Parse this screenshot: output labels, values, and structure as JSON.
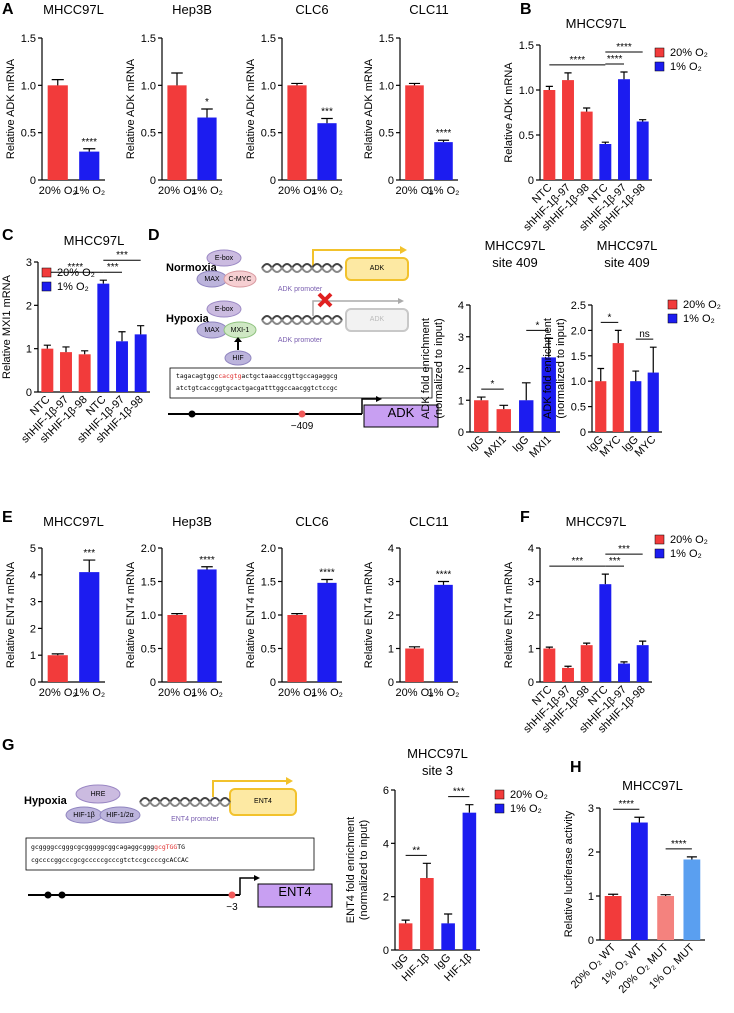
{
  "panel_labels": [
    "A",
    "B",
    "C",
    "D",
    "E",
    "F",
    "G",
    "H"
  ],
  "chart_data": [
    {
      "type": "bar",
      "title": "MHCC97L",
      "ylabel": "Relative ADK mRNA",
      "categories": [
        "20% O₂",
        "1% O₂"
      ],
      "values": [
        1.0,
        0.3
      ],
      "errors": [
        0.06,
        0.03
      ],
      "colors": [
        "#f23b3b",
        "#1c1cf0"
      ],
      "ylim": [
        0,
        1.5
      ],
      "yticks": [
        0,
        0.5,
        {
          "value": 1,
          "label": "1.0"
        },
        1.5
      ],
      "significance": [
        {
          "bar": 1,
          "label": "****"
        }
      ]
    },
    {
      "type": "bar",
      "title": "Hep3B",
      "ylabel": "Relative ADK mRNA",
      "categories": [
        "20% O₂",
        "1% O₂"
      ],
      "values": [
        1.0,
        0.66
      ],
      "errors": [
        0.13,
        0.09
      ],
      "colors": [
        "#f23b3b",
        "#1c1cf0"
      ],
      "ylim": [
        0,
        1.5
      ],
      "yticks": [
        0,
        0.5,
        {
          "value": 1,
          "label": "1.0"
        },
        1.5
      ],
      "significance": [
        {
          "bar": 1,
          "label": "*"
        }
      ]
    },
    {
      "type": "bar",
      "title": "CLC6",
      "ylabel": "Relative ADK mRNA",
      "categories": [
        "20% O₂",
        "1% O₂"
      ],
      "values": [
        1.0,
        0.6
      ],
      "errors": [
        0.02,
        0.05
      ],
      "colors": [
        "#f23b3b",
        "#1c1cf0"
      ],
      "ylim": [
        0,
        1.5
      ],
      "yticks": [
        0,
        0.5,
        {
          "value": 1,
          "label": "1.0"
        },
        1.5
      ],
      "significance": [
        {
          "bar": 1,
          "label": "***"
        }
      ]
    },
    {
      "type": "bar",
      "title": "CLC11",
      "ylabel": "Relative ADK mRNA",
      "categories": [
        "20% O₂",
        "1% O₂"
      ],
      "values": [
        1.0,
        0.4
      ],
      "errors": [
        0.02,
        0.02
      ],
      "colors": [
        "#f23b3b",
        "#1c1cf0"
      ],
      "ylim": [
        0,
        1.5
      ],
      "yticks": [
        0,
        0.5,
        {
          "value": 1,
          "label": "1.0"
        },
        1.5
      ],
      "significance": [
        {
          "bar": 1,
          "label": "****"
        }
      ]
    },
    {
      "type": "bar",
      "title": "MHCC97L",
      "ylabel": "Relative ADK mRNA",
      "categories": [
        "NTC",
        "shHIF-1β-97",
        "shHIF-1β-98",
        "NTC",
        "shHIF-1β-97",
        "shHIF-1β-98"
      ],
      "values": [
        1.0,
        1.11,
        0.76,
        0.4,
        1.12,
        0.65
      ],
      "errors": [
        0.04,
        0.08,
        0.04,
        0.02,
        0.08,
        0.02
      ],
      "colors": [
        "#f23b3b",
        "#f23b3b",
        "#f23b3b",
        "#1c1cf0",
        "#1c1cf0",
        "#1c1cf0"
      ],
      "ylim": [
        0,
        1.5
      ],
      "yticks": [
        0,
        0.5,
        {
          "value": 1,
          "label": "1.0"
        },
        1.5
      ],
      "legend": [
        {
          "name": "20% O₂",
          "color": "#f23b3b"
        },
        {
          "name": "1% O₂",
          "color": "#1c1cf0"
        }
      ],
      "significance": [
        {
          "from": 0,
          "to": 3,
          "label": "****"
        },
        {
          "from": 3,
          "to": 4,
          "label": "****"
        },
        {
          "from": 3,
          "to": 5,
          "label": "****"
        }
      ]
    },
    {
      "type": "bar",
      "title": "MHCC97L",
      "ylabel": "Relative MXI1 mRNA",
      "categories": [
        "NTC",
        "shHIF-1β-97",
        "shHIF-1β-98",
        "NTC",
        "shHIF-1β-97",
        "shHIF-1β-98"
      ],
      "values": [
        1.0,
        0.92,
        0.87,
        2.5,
        1.17,
        1.33
      ],
      "errors": [
        0.08,
        0.12,
        0.08,
        0.08,
        0.22,
        0.2
      ],
      "colors": [
        "#f23b3b",
        "#f23b3b",
        "#f23b3b",
        "#1c1cf0",
        "#1c1cf0",
        "#1c1cf0"
      ],
      "ylim": [
        0,
        3
      ],
      "yticks": [
        0,
        1,
        2,
        3
      ],
      "legend": [
        {
          "name": "20% O₂",
          "color": "#f23b3b"
        },
        {
          "name": "1% O₂",
          "color": "#1c1cf0"
        }
      ],
      "significance": [
        {
          "from": 0,
          "to": 3,
          "label": "****"
        },
        {
          "from": 3,
          "to": 4,
          "label": "***"
        },
        {
          "from": 3,
          "to": 5,
          "label": "***"
        }
      ]
    },
    {
      "type": "bar",
      "title": [
        "MHCC97L",
        "site 409"
      ],
      "ylabel": [
        "ADK fold enrichment",
        "(normalized to input)"
      ],
      "categories": [
        "IgG",
        "MXI1",
        "IgG",
        "MXI1"
      ],
      "values": [
        1.0,
        0.72,
        1.0,
        2.35
      ],
      "errors": [
        0.1,
        0.12,
        0.55,
        0.6
      ],
      "colors": [
        "#f23b3b",
        "#f23b3b",
        "#1c1cf0",
        "#1c1cf0"
      ],
      "ylim": [
        0,
        4
      ],
      "yticks": [
        0,
        1,
        2,
        3,
        4
      ],
      "significance": [
        {
          "from": 0,
          "to": 1,
          "label": "*"
        },
        {
          "from": 2,
          "to": 3,
          "label": "*"
        }
      ]
    },
    {
      "type": "bar",
      "title": [
        "MHCC97L",
        "site 409"
      ],
      "ylabel": [
        "ADK fold enrichment",
        "(normalized to input)"
      ],
      "categories": [
        "IgG",
        "MYC",
        "IgG",
        "MYC"
      ],
      "values": [
        1.0,
        1.75,
        1.0,
        1.17
      ],
      "errors": [
        0.25,
        0.25,
        0.2,
        0.5
      ],
      "colors": [
        "#f23b3b",
        "#f23b3b",
        "#1c1cf0",
        "#1c1cf0"
      ],
      "ylim": [
        0,
        2.5
      ],
      "yticks": [
        0,
        0.5,
        {
          "value": 1,
          "label": "1.0"
        },
        1.5,
        {
          "value": 2,
          "label": "2.0"
        },
        2.5
      ],
      "legend": [
        {
          "name": "20% O₂",
          "color": "#f23b3b"
        },
        {
          "name": "1% O₂",
          "color": "#1c1cf0"
        }
      ],
      "significance": [
        {
          "from": 0,
          "to": 1,
          "label": "*"
        },
        {
          "from": 2,
          "to": 3,
          "label": "ns"
        }
      ]
    },
    {
      "type": "bar",
      "title": "MHCC97L",
      "ylabel": "Relative ENT4 mRNA",
      "categories": [
        "20% O₂",
        "1% O₂"
      ],
      "values": [
        1.0,
        4.1
      ],
      "errors": [
        0.05,
        0.45
      ],
      "colors": [
        "#f23b3b",
        "#1c1cf0"
      ],
      "ylim": [
        0,
        5
      ],
      "yticks": [
        0,
        1,
        2,
        3,
        4,
        5
      ],
      "significance": [
        {
          "bar": 1,
          "label": "***"
        }
      ]
    },
    {
      "type": "bar",
      "title": "Hep3B",
      "ylabel": "Relative ENT4 mRNA",
      "categories": [
        "20% O₂",
        "1% O₂"
      ],
      "values": [
        1.0,
        1.68
      ],
      "errors": [
        0.02,
        0.04
      ],
      "colors": [
        "#f23b3b",
        "#1c1cf0"
      ],
      "ylim": [
        0,
        2
      ],
      "yticks": [
        0,
        0.5,
        {
          "value": 1,
          "label": "1.0"
        },
        1.5,
        {
          "value": 2,
          "label": "2.0"
        }
      ],
      "significance": [
        {
          "bar": 1,
          "label": "****"
        }
      ]
    },
    {
      "type": "bar",
      "title": "CLC6",
      "ylabel": "Relative ENT4 mRNA",
      "categories": [
        "20% O₂",
        "1% O₂"
      ],
      "values": [
        1.0,
        1.48
      ],
      "errors": [
        0.02,
        0.05
      ],
      "colors": [
        "#f23b3b",
        "#1c1cf0"
      ],
      "ylim": [
        0,
        2
      ],
      "yticks": [
        0,
        0.5,
        {
          "value": 1,
          "label": "1.0"
        },
        1.5,
        {
          "value": 2,
          "label": "2.0"
        }
      ],
      "significance": [
        {
          "bar": 1,
          "label": "****"
        }
      ]
    },
    {
      "type": "bar",
      "title": "CLC11",
      "ylabel": "Relative ENT4 mRNA",
      "categories": [
        "20% O₂",
        "1% O₂"
      ],
      "values": [
        1.0,
        2.9
      ],
      "errors": [
        0.05,
        0.1
      ],
      "colors": [
        "#f23b3b",
        "#1c1cf0"
      ],
      "ylim": [
        0,
        4
      ],
      "yticks": [
        0,
        1,
        2,
        3,
        4
      ],
      "significance": [
        {
          "bar": 1,
          "label": "****"
        }
      ]
    },
    {
      "type": "bar",
      "title": "MHCC97L",
      "ylabel": "Relative ENT4 mRNA",
      "categories": [
        "NTC",
        "shHIF-1β-97",
        "shHIF-1β-98",
        "NTC",
        "shHIF-1β-97",
        "shHIF-1β-98"
      ],
      "values": [
        1.0,
        0.42,
        1.1,
        2.92,
        0.55,
        1.1
      ],
      "errors": [
        0.04,
        0.05,
        0.06,
        0.3,
        0.05,
        0.12
      ],
      "colors": [
        "#f23b3b",
        "#f23b3b",
        "#f23b3b",
        "#1c1cf0",
        "#1c1cf0",
        "#1c1cf0"
      ],
      "ylim": [
        0,
        4
      ],
      "yticks": [
        0,
        1,
        2,
        3,
        4
      ],
      "legend": [
        {
          "name": "20% O₂",
          "color": "#f23b3b"
        },
        {
          "name": "1% O₂",
          "color": "#1c1cf0"
        }
      ],
      "significance": [
        {
          "from": 0,
          "to": 3,
          "label": "***"
        },
        {
          "from": 3,
          "to": 4,
          "label": "***"
        },
        {
          "from": 3,
          "to": 5,
          "label": "***"
        }
      ]
    },
    {
      "type": "bar",
      "title": [
        "MHCC97L",
        "site 3"
      ],
      "ylabel": [
        "ENT4 fold enrichment",
        "(normalized to input)"
      ],
      "categories": [
        "IgG",
        "HIF-1β",
        "IgG",
        "HIF-1β"
      ],
      "values": [
        1.0,
        2.7,
        1.0,
        5.15
      ],
      "errors": [
        0.12,
        0.55,
        0.35,
        0.3
      ],
      "colors": [
        "#f23b3b",
        "#f23b3b",
        "#1c1cf0",
        "#1c1cf0"
      ],
      "ylim": [
        0,
        6
      ],
      "yticks": [
        0,
        2,
        4,
        6
      ],
      "legend": [
        {
          "name": "20% O₂",
          "color": "#f23b3b"
        },
        {
          "name": "1% O₂",
          "color": "#1c1cf0"
        }
      ],
      "significance": [
        {
          "from": 0,
          "to": 1,
          "label": "**"
        },
        {
          "from": 2,
          "to": 3,
          "label": "***"
        }
      ]
    },
    {
      "type": "bar",
      "title": "MHCC97L",
      "ylabel": "Relative luciferase activity",
      "categories": [
        "20% O₂ WT",
        "1% O₂ WT",
        "20% O₂ MUT",
        "1% O₂ MUT"
      ],
      "values": [
        1.0,
        2.67,
        1.0,
        1.83
      ],
      "errors": [
        0.04,
        0.12,
        0.03,
        0.06
      ],
      "colors": [
        "#f23b3b",
        "#1c1cf0",
        "#f4827e",
        "#5a9ff0"
      ],
      "ylim": [
        0,
        3
      ],
      "yticks": [
        0,
        1,
        2,
        3
      ],
      "significance": [
        {
          "from": 0,
          "to": 1,
          "label": "****"
        },
        {
          "from": 2,
          "to": 3,
          "label": "****"
        }
      ]
    }
  ],
  "diagrams": {
    "D": {
      "normoxia": {
        "label": "Normoxia",
        "ebox": "E-box",
        "max": "MAX",
        "cmyc": "C-MYC",
        "promoter": "ADK promoter",
        "gene": "ADK"
      },
      "hypoxia": {
        "label": "Hypoxia",
        "ebox": "E-box",
        "max": "MAX",
        "mxi1": "MXI-1",
        "hif": "HIF",
        "promoter": "ADK promoter",
        "gene": "ADK"
      },
      "sequence": [
        [
          "tagacagtggc",
          "cacgtg",
          "actgctaaaccggttgccagaggcg"
        ],
        "atctgtcaccggtgcactgacgatttggccaacggtctccgc"
      ],
      "site": "−409",
      "gene": "ADK"
    },
    "G": {
      "label": "Hypoxia",
      "hre": "HRE",
      "hif1b": "HIF-1β",
      "hif12a": "HIF-1/2α",
      "promoter": "ENT4 promoter",
      "gene_box": "ENT4",
      "sequence": [
        [
          "gcggggccgggcgcgggggcggcagaggcggg",
          "gcgTGG",
          "TG"
        ],
        "cgccccggcccgcgcccccgcccgtctccgccccgcACCAC"
      ],
      "site": "−3",
      "gene": "ENT4"
    }
  }
}
